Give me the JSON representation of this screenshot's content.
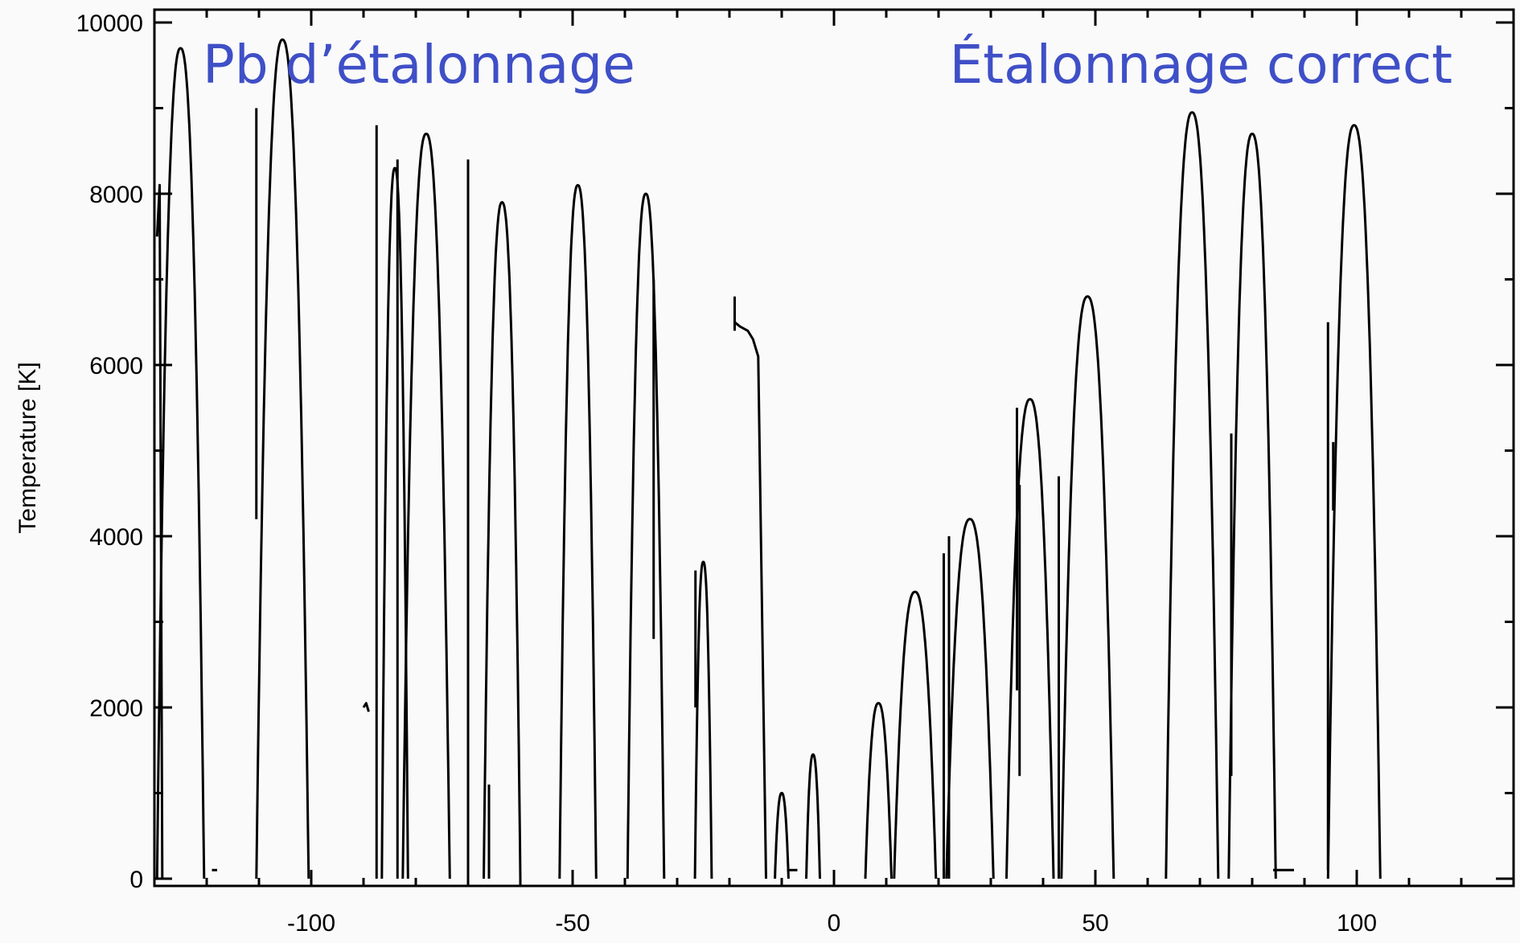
{
  "chart_data": {
    "type": "line",
    "title": "",
    "xlabel": "",
    "ylabel": "Temperature [K]",
    "xlim": [
      -130,
      130
    ],
    "ylim": [
      0,
      10000
    ],
    "x_ticks": [
      -100,
      -50,
      0,
      50,
      100
    ],
    "y_ticks": [
      0,
      2000,
      4000,
      6000,
      8000,
      10000
    ],
    "grid": false,
    "annotations": [
      {
        "text": "Pb d’étalonnage",
        "color": "#3f4fc7"
      },
      {
        "text": "Étalonnage correct",
        "color": "#3f4fc7"
      }
    ],
    "series_color": "#000000",
    "arches": [
      {
        "center": -125,
        "half_width": 4.5,
        "peak": 9700
      },
      {
        "center": -105.5,
        "half_width": 5.0,
        "peak": 9800
      },
      {
        "center": -84,
        "half_width": 2.5,
        "peak": 8300
      },
      {
        "center": -78,
        "half_width": 4.5,
        "peak": 8700
      },
      {
        "center": -63.5,
        "half_width": 3.5,
        "peak": 7900
      },
      {
        "center": -49,
        "half_width": 3.5,
        "peak": 8100
      },
      {
        "center": -36,
        "half_width": 3.5,
        "peak": 8000
      },
      {
        "center": -25,
        "half_width": 1.6,
        "peak": 3700
      },
      {
        "center": -10,
        "half_width": 1.3,
        "peak": 1000
      },
      {
        "center": -4,
        "half_width": 1.3,
        "peak": 1450
      },
      {
        "center": 8.5,
        "half_width": 2.5,
        "peak": 2050
      },
      {
        "center": 15.5,
        "half_width": 4.0,
        "peak": 3350
      },
      {
        "center": 26,
        "half_width": 4.5,
        "peak": 4200
      },
      {
        "center": 37.5,
        "half_width": 4.5,
        "peak": 5600
      },
      {
        "center": 48.5,
        "half_width": 5.0,
        "peak": 6800
      },
      {
        "center": 68.5,
        "half_width": 5.0,
        "peak": 8950
      },
      {
        "center": 80,
        "half_width": 4.5,
        "peak": 8700
      },
      {
        "center": 99.5,
        "half_width": 5.0,
        "peak": 8800
      }
    ],
    "segments": [
      {
        "x": [
          -19,
          -18,
          -16.5,
          -15.5,
          -14.5,
          -13
        ],
        "y": [
          6500,
          6450,
          6400,
          6300,
          6100,
          0
        ]
      },
      {
        "x": [
          -129.5,
          -129,
          -128.5
        ],
        "y": [
          7500,
          8100,
          0
        ]
      },
      {
        "x": [
          -90,
          -89.5,
          -89
        ],
        "y": [
          2000,
          2050,
          1950
        ]
      },
      {
        "x": [
          -119,
          -118
        ],
        "y": [
          100,
          100
        ]
      },
      {
        "x": [
          -9,
          -7
        ],
        "y": [
          100,
          100
        ]
      },
      {
        "x": [
          84,
          88
        ],
        "y": [
          100,
          100
        ]
      }
    ],
    "spikes": [
      {
        "x": -110.5,
        "y": [
          4200,
          9000
        ]
      },
      {
        "x": -87.5,
        "y": [
          0,
          8800
        ]
      },
      {
        "x": -83.5,
        "y": [
          0,
          8400
        ]
      },
      {
        "x": -70,
        "y": [
          0,
          8400
        ]
      },
      {
        "x": -66,
        "y": [
          0,
          1100
        ]
      },
      {
        "x": -34.5,
        "y": [
          2800,
          7000
        ]
      },
      {
        "x": -26.5,
        "y": [
          2000,
          3600
        ]
      },
      {
        "x": -19,
        "y": [
          6400,
          6800
        ]
      },
      {
        "x": 21,
        "y": [
          0,
          3800
        ]
      },
      {
        "x": 22,
        "y": [
          0,
          4000
        ]
      },
      {
        "x": 35,
        "y": [
          2200,
          5500
        ]
      },
      {
        "x": 35.5,
        "y": [
          1200,
          4600
        ]
      },
      {
        "x": 43,
        "y": [
          0,
          4700
        ]
      },
      {
        "x": 76,
        "y": [
          1200,
          5200
        ]
      },
      {
        "x": 94.5,
        "y": [
          100,
          6500
        ]
      },
      {
        "x": 95.5,
        "y": [
          4300,
          5100
        ]
      }
    ]
  }
}
